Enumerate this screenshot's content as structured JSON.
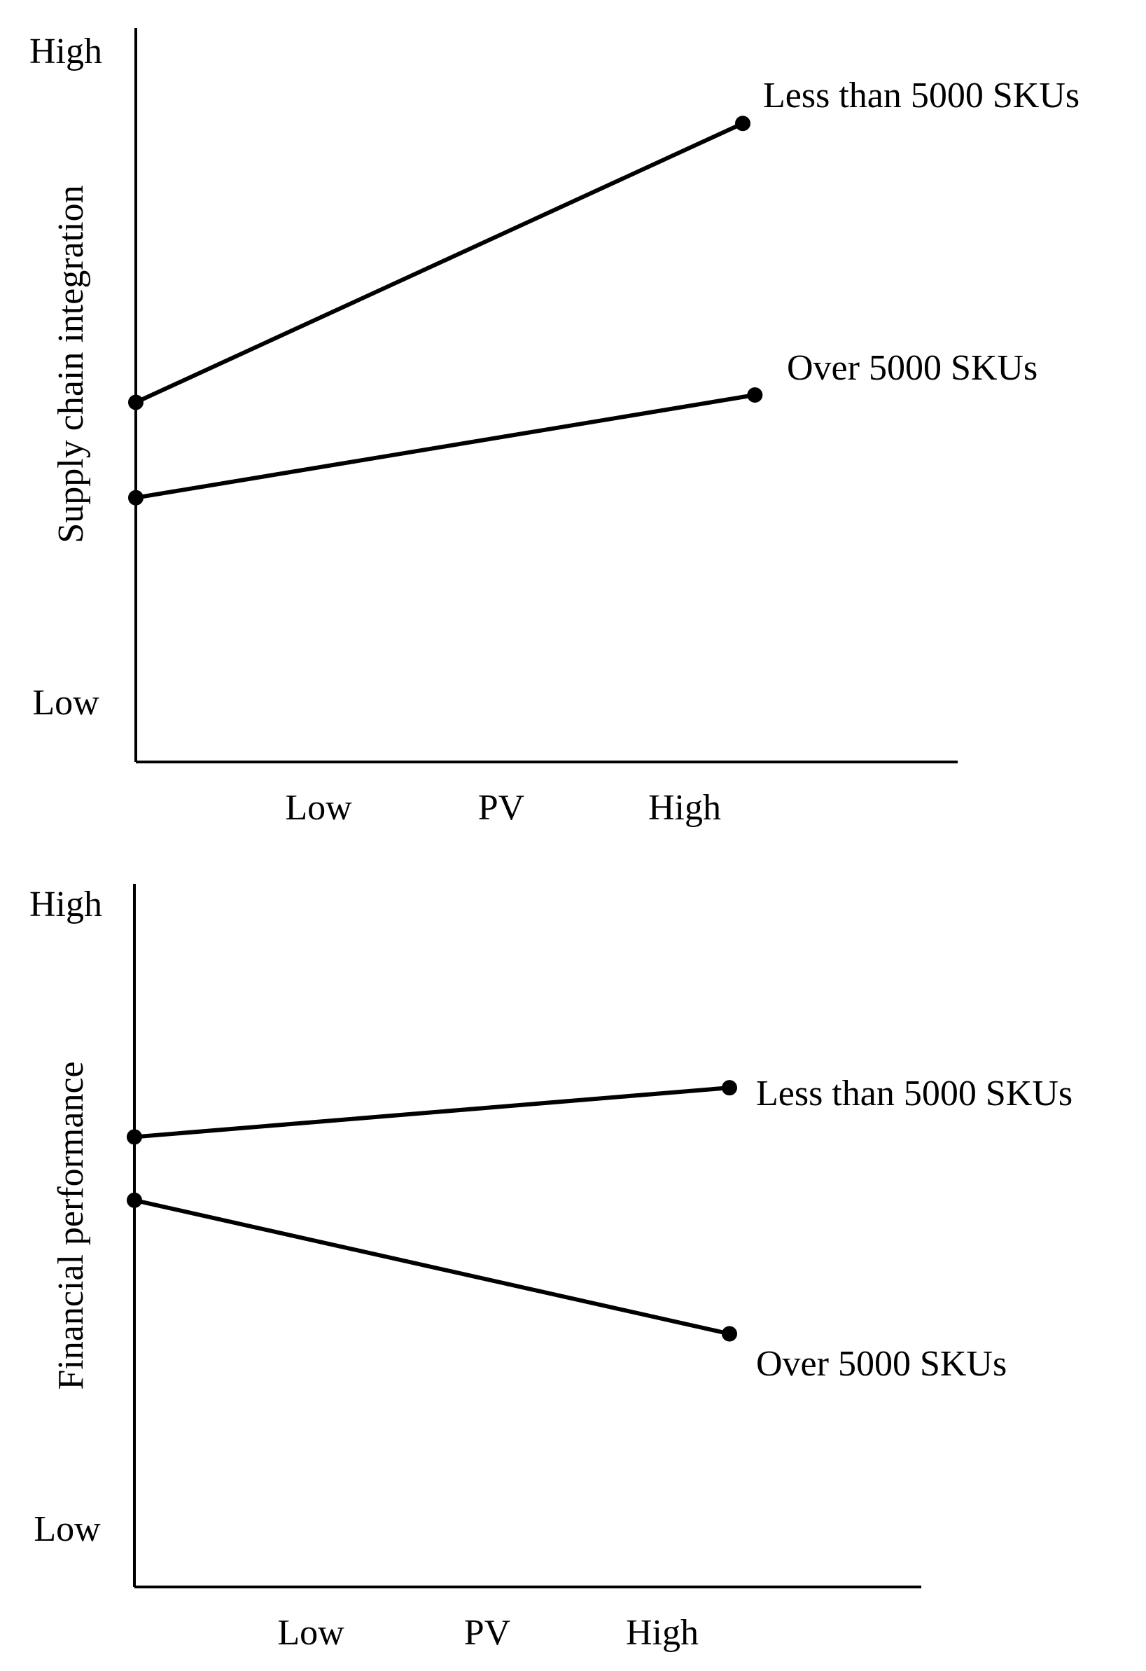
{
  "chart_data": [
    {
      "type": "line",
      "ylabel": "Supply chain integration",
      "xlabel": "PV",
      "x_ticks": [
        "Low",
        "PV",
        "High"
      ],
      "y_ticks": [
        "High",
        "Low"
      ],
      "ylim": [
        0,
        1
      ],
      "x": [
        "Low PV",
        "High PV"
      ],
      "series": [
        {
          "name": "Less than 5000 SKUs",
          "x": [
            0,
            1
          ],
          "values": [
            0.49,
            0.87
          ]
        },
        {
          "name": "Over 5000 SKUs",
          "x": [
            0,
            1.02
          ],
          "values": [
            0.36,
            0.5
          ]
        }
      ]
    },
    {
      "type": "line",
      "ylabel": "Financial performance",
      "xlabel": "PV",
      "x_ticks": [
        "Low",
        "PV",
        "High"
      ],
      "y_ticks": [
        "High",
        "Low"
      ],
      "ylim": [
        0,
        1
      ],
      "x": [
        "Low PV",
        "High PV"
      ],
      "series": [
        {
          "name": "Less than 5000 SKUs",
          "x": [
            0,
            1
          ],
          "values": [
            0.64,
            0.71
          ]
        },
        {
          "name": "Over 5000 SKUs",
          "x": [
            0,
            1
          ],
          "values": [
            0.55,
            0.36
          ]
        }
      ]
    }
  ]
}
